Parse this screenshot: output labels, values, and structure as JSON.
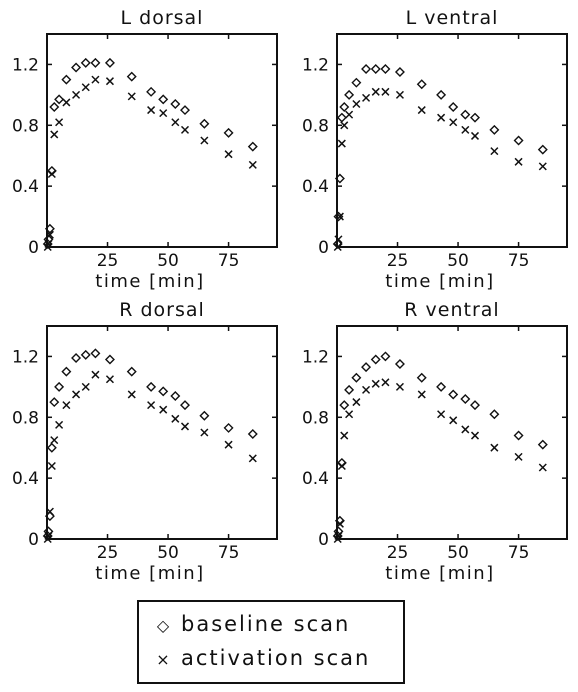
{
  "chart_data": [
    {
      "type": "scatter",
      "title": "L dorsal",
      "xlabel": "time [min]",
      "ylabel": "",
      "xlim": [
        0,
        95
      ],
      "ylim": [
        0,
        1.4
      ],
      "xticks": [
        25,
        50,
        75
      ],
      "yticks": [
        0,
        0.4,
        0.8,
        1.2
      ],
      "yticklabels": [
        "0",
        "0.4",
        "0.8",
        "1.2"
      ],
      "series": [
        {
          "name": "baseline scan",
          "marker": "diamond",
          "x": [
            0.3,
            0.6,
            1.2,
            2,
            3,
            5,
            8,
            12,
            16,
            20,
            26,
            35,
            43,
            48,
            53,
            57,
            65,
            75,
            85
          ],
          "y": [
            0.02,
            0.05,
            0.12,
            0.5,
            0.92,
            0.97,
            1.1,
            1.18,
            1.21,
            1.21,
            1.21,
            1.12,
            1.02,
            0.97,
            0.94,
            0.9,
            0.81,
            0.75,
            0.66
          ]
        },
        {
          "name": "activation scan",
          "marker": "x",
          "x": [
            0.3,
            0.6,
            1.2,
            2,
            3,
            5,
            8,
            12,
            16,
            20,
            26,
            35,
            43,
            48,
            53,
            57,
            65,
            75,
            85
          ],
          "y": [
            0.0,
            0.02,
            0.08,
            0.48,
            0.74,
            0.82,
            0.95,
            1.0,
            1.05,
            1.1,
            1.09,
            0.99,
            0.9,
            0.88,
            0.82,
            0.77,
            0.7,
            0.61,
            0.54
          ]
        }
      ]
    },
    {
      "type": "scatter",
      "title": "L ventral",
      "xlabel": "time [min]",
      "ylabel": "",
      "xlim": [
        0,
        95
      ],
      "ylim": [
        0,
        1.4
      ],
      "xticks": [
        25,
        50,
        75
      ],
      "yticks": [
        0,
        0.4,
        0.8,
        1.2
      ],
      "yticklabels": [
        "0",
        "0.4",
        "0.8",
        "1.2"
      ],
      "series": [
        {
          "name": "baseline scan",
          "marker": "diamond",
          "x": [
            0.3,
            0.6,
            1.2,
            2,
            3,
            5,
            8,
            12,
            16,
            20,
            26,
            35,
            43,
            48,
            53,
            57,
            65,
            75,
            85
          ],
          "y": [
            0.02,
            0.2,
            0.45,
            0.85,
            0.92,
            1.0,
            1.08,
            1.17,
            1.17,
            1.17,
            1.15,
            1.07,
            1.0,
            0.92,
            0.87,
            0.85,
            0.77,
            0.7,
            0.64
          ]
        },
        {
          "name": "activation scan",
          "marker": "x",
          "x": [
            0.3,
            0.6,
            1.2,
            2,
            3,
            5,
            8,
            12,
            16,
            20,
            26,
            35,
            43,
            48,
            53,
            57,
            65,
            75,
            85
          ],
          "y": [
            0.0,
            0.05,
            0.2,
            0.68,
            0.8,
            0.87,
            0.94,
            0.98,
            1.02,
            1.02,
            1.0,
            0.9,
            0.85,
            0.82,
            0.77,
            0.73,
            0.63,
            0.56,
            0.53
          ]
        }
      ]
    },
    {
      "type": "scatter",
      "title": "R dorsal",
      "xlabel": "time [min]",
      "ylabel": "",
      "xlim": [
        0,
        95
      ],
      "ylim": [
        0,
        1.4
      ],
      "xticks": [
        25,
        50,
        75
      ],
      "yticks": [
        0,
        0.4,
        0.8,
        1.2
      ],
      "yticklabels": [
        "0",
        "0.4",
        "0.8",
        "1.2"
      ],
      "series": [
        {
          "name": "baseline scan",
          "marker": "diamond",
          "x": [
            0.3,
            0.6,
            1.2,
            2,
            3,
            5,
            8,
            12,
            16,
            20,
            26,
            35,
            43,
            48,
            53,
            57,
            65,
            75,
            85
          ],
          "y": [
            0.02,
            0.05,
            0.15,
            0.6,
            0.9,
            1.0,
            1.1,
            1.19,
            1.21,
            1.22,
            1.18,
            1.1,
            1.0,
            0.97,
            0.94,
            0.88,
            0.81,
            0.73,
            0.69
          ]
        },
        {
          "name": "activation scan",
          "marker": "x",
          "x": [
            0.3,
            0.6,
            1.2,
            2,
            3,
            5,
            8,
            12,
            16,
            20,
            26,
            35,
            43,
            48,
            53,
            57,
            65,
            75,
            85
          ],
          "y": [
            0.0,
            0.02,
            0.18,
            0.48,
            0.65,
            0.75,
            0.88,
            0.95,
            1.0,
            1.08,
            1.05,
            0.95,
            0.88,
            0.85,
            0.79,
            0.74,
            0.7,
            0.62,
            0.53
          ]
        }
      ]
    },
    {
      "type": "scatter",
      "title": "R ventral",
      "xlabel": "time [min]",
      "ylabel": "",
      "xlim": [
        0,
        95
      ],
      "ylim": [
        0,
        1.4
      ],
      "xticks": [
        25,
        50,
        75
      ],
      "yticks": [
        0,
        0.4,
        0.8,
        1.2
      ],
      "yticklabels": [
        "0",
        "0.4",
        "0.8",
        "1.2"
      ],
      "series": [
        {
          "name": "baseline scan",
          "marker": "diamond",
          "x": [
            0.3,
            0.6,
            1.2,
            2,
            3,
            5,
            8,
            12,
            16,
            20,
            26,
            35,
            43,
            48,
            53,
            57,
            65,
            75,
            85
          ],
          "y": [
            0.02,
            0.05,
            0.12,
            0.5,
            0.88,
            0.98,
            1.06,
            1.13,
            1.18,
            1.2,
            1.15,
            1.06,
            1.0,
            0.95,
            0.92,
            0.88,
            0.82,
            0.68,
            0.62
          ]
        },
        {
          "name": "activation scan",
          "marker": "x",
          "x": [
            0.3,
            0.6,
            1.2,
            2,
            3,
            5,
            8,
            12,
            16,
            20,
            26,
            35,
            43,
            48,
            53,
            57,
            65,
            75,
            85
          ],
          "y": [
            0.0,
            0.02,
            0.1,
            0.48,
            0.68,
            0.82,
            0.9,
            0.98,
            1.02,
            1.03,
            1.0,
            0.95,
            0.82,
            0.78,
            0.72,
            0.68,
            0.6,
            0.54,
            0.47
          ]
        }
      ]
    }
  ],
  "legend": {
    "baseline_label": "baseline scan",
    "activation_label": "activation scan",
    "baseline_symbol": "◇",
    "activation_symbol": "×"
  }
}
